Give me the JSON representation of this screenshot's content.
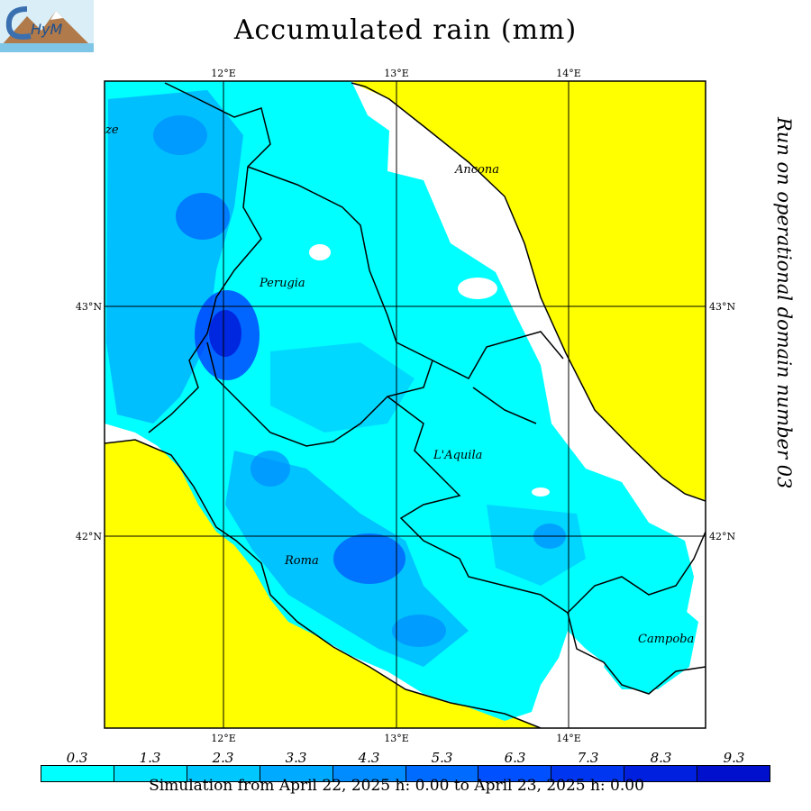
{
  "title": "Accumulated rain (mm)",
  "side_note": "Run on operational domain number 03",
  "footer": "Simulation from April 22, 2025 h: 0.00 to April 23, 2025 h: 0.00",
  "logo": {
    "lettering": "CHyM"
  },
  "colors": {
    "sea": "#ffff00",
    "no_rain": "#ffffff",
    "rain_scale": [
      "#00ffff",
      "#00e4ff",
      "#00c8ff",
      "#00aaff",
      "#008cff",
      "#006cff",
      "#0050ff",
      "#0036f0",
      "#0020e0",
      "#0010cc"
    ]
  },
  "map": {
    "lon_labels": [
      "12°E",
      "13°E",
      "14°E"
    ],
    "lat_labels": [
      "43°N",
      "42°N"
    ],
    "cities": [
      {
        "name": "Ancona"
      },
      {
        "name": "Perugia"
      },
      {
        "name": "L'Aquila"
      },
      {
        "name": "Roma"
      },
      {
        "name": "Campoba"
      },
      {
        "name": "ze"
      }
    ]
  },
  "legend": {
    "values": [
      "0.3",
      "1.3",
      "2.3",
      "3.3",
      "4.3",
      "5.3",
      "6.3",
      "7.3",
      "8.3",
      "9.3"
    ]
  }
}
